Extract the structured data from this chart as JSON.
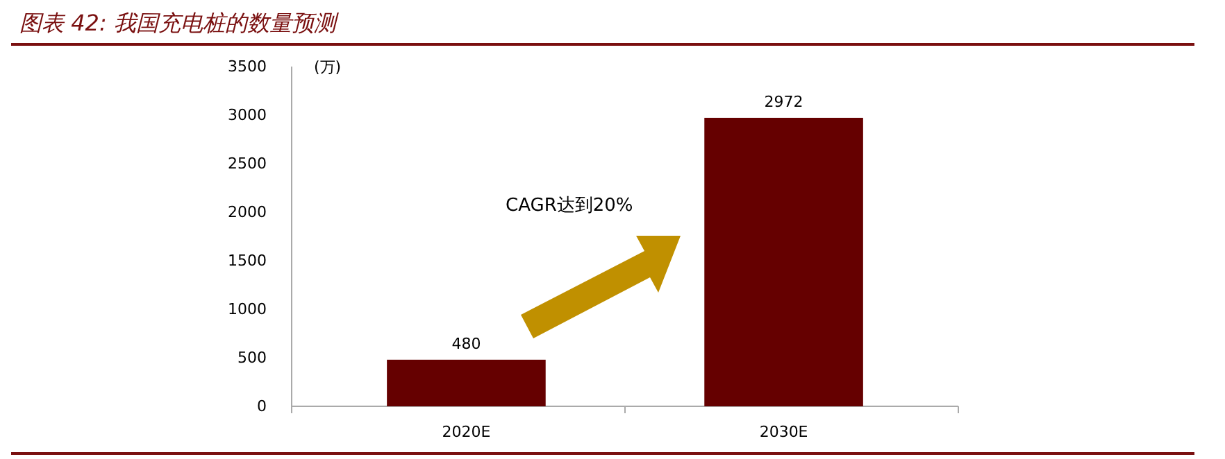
{
  "chart_data": {
    "type": "bar",
    "title": "图表 42: 我国充电桩的数量预测",
    "ylabel": "(万)",
    "categories": [
      "2020E",
      "2030E"
    ],
    "values": [
      480,
      2972
    ],
    "color": "#650000",
    "ylim": [
      0,
      3500
    ],
    "yticks": [
      0,
      500,
      1000,
      1500,
      2000,
      2500,
      3000,
      3500
    ],
    "data_labels": true,
    "grid": false,
    "annotations": [
      "CAGR达到20%"
    ]
  }
}
